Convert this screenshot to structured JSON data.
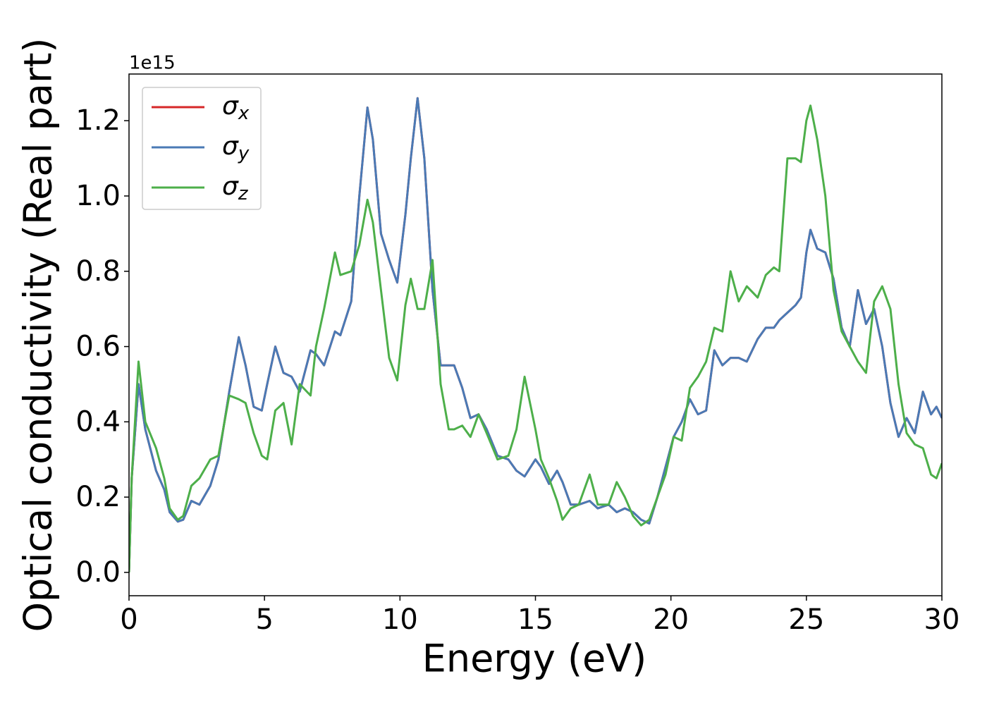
{
  "chart_data": {
    "type": "line",
    "x_label": "Energy (eV)",
    "y_label": "Optical conductivity (Real part)",
    "y_offset_label": "1e15",
    "xlim": [
      0,
      30
    ],
    "ylim": [
      -0.062,
      1.324
    ],
    "xticks": [
      0,
      5,
      10,
      15,
      20,
      25,
      30
    ],
    "yticks": [
      {
        "value": 0,
        "label": "0.0"
      },
      0.2,
      0.4,
      0.6,
      0.8,
      {
        "value": 1,
        "label": "1.0"
      },
      1.2
    ],
    "grid": false,
    "legend": "upper left",
    "x": [
      0,
      0.1,
      0.35,
      0.6,
      1.0,
      1.3,
      1.5,
      1.8,
      2.0,
      2.3,
      2.6,
      3.0,
      3.3,
      3.7,
      4.05,
      4.3,
      4.6,
      4.9,
      5.1,
      5.4,
      5.7,
      6.0,
      6.3,
      6.7,
      6.9,
      7.2,
      7.6,
      7.8,
      8.2,
      8.5,
      8.8,
      9.0,
      9.3,
      9.6,
      9.9,
      10.2,
      10.4,
      10.65,
      10.9,
      11.2,
      11.5,
      11.8,
      12.0,
      12.3,
      12.6,
      12.9,
      13.2,
      13.6,
      14.0,
      14.3,
      14.6,
      15.0,
      15.2,
      15.5,
      15.8,
      16.0,
      16.3,
      16.6,
      17.0,
      17.3,
      17.7,
      18.0,
      18.3,
      18.6,
      18.9,
      19.2,
      19.5,
      19.8,
      20.1,
      20.4,
      20.7,
      21.0,
      21.3,
      21.6,
      21.9,
      22.2,
      22.5,
      22.8,
      23.2,
      23.5,
      23.8,
      24.0,
      24.3,
      24.6,
      24.8,
      25.0,
      25.15,
      25.4,
      25.7,
      26.0,
      26.3,
      26.6,
      26.9,
      27.2,
      27.5,
      27.8,
      28.1,
      28.4,
      28.7,
      29.0,
      29.3,
      29.6,
      29.8,
      30.0
    ],
    "series": [
      {
        "name": "σx",
        "color": "#d62728",
        "values": [
          0,
          0.25,
          0.5,
          0.38,
          0.27,
          0.22,
          0.16,
          0.135,
          0.14,
          0.19,
          0.18,
          0.23,
          0.3,
          0.48,
          0.625,
          0.55,
          0.44,
          0.43,
          0.5,
          0.6,
          0.53,
          0.52,
          0.48,
          0.59,
          0.58,
          0.55,
          0.64,
          0.63,
          0.72,
          1.0,
          1.235,
          1.15,
          0.9,
          0.83,
          0.77,
          0.95,
          1.1,
          1.26,
          1.1,
          0.75,
          0.55,
          0.55,
          0.55,
          0.49,
          0.41,
          0.42,
          0.38,
          0.31,
          0.3,
          0.27,
          0.255,
          0.3,
          0.28,
          0.235,
          0.27,
          0.24,
          0.18,
          0.18,
          0.19,
          0.17,
          0.18,
          0.16,
          0.17,
          0.16,
          0.14,
          0.13,
          0.2,
          0.28,
          0.36,
          0.4,
          0.46,
          0.42,
          0.43,
          0.59,
          0.55,
          0.57,
          0.57,
          0.56,
          0.62,
          0.65,
          0.65,
          0.67,
          0.69,
          0.71,
          0.73,
          0.85,
          0.91,
          0.86,
          0.85,
          0.78,
          0.65,
          0.6,
          0.75,
          0.66,
          0.7,
          0.6,
          0.45,
          0.36,
          0.41,
          0.37,
          0.48,
          0.42,
          0.44,
          0.41
        ]
      },
      {
        "name": "σy",
        "color": "#4a7ab5",
        "values": [
          0,
          0.25,
          0.5,
          0.38,
          0.27,
          0.22,
          0.16,
          0.135,
          0.14,
          0.19,
          0.18,
          0.23,
          0.3,
          0.48,
          0.625,
          0.55,
          0.44,
          0.43,
          0.5,
          0.6,
          0.53,
          0.52,
          0.48,
          0.59,
          0.58,
          0.55,
          0.64,
          0.63,
          0.72,
          1.0,
          1.235,
          1.15,
          0.9,
          0.83,
          0.77,
          0.95,
          1.1,
          1.26,
          1.1,
          0.75,
          0.55,
          0.55,
          0.55,
          0.49,
          0.41,
          0.42,
          0.38,
          0.31,
          0.3,
          0.27,
          0.255,
          0.3,
          0.28,
          0.235,
          0.27,
          0.24,
          0.18,
          0.18,
          0.19,
          0.17,
          0.18,
          0.16,
          0.17,
          0.16,
          0.14,
          0.13,
          0.2,
          0.28,
          0.36,
          0.4,
          0.46,
          0.42,
          0.43,
          0.59,
          0.55,
          0.57,
          0.57,
          0.56,
          0.62,
          0.65,
          0.65,
          0.67,
          0.69,
          0.71,
          0.73,
          0.85,
          0.91,
          0.86,
          0.85,
          0.78,
          0.65,
          0.6,
          0.75,
          0.66,
          0.7,
          0.6,
          0.45,
          0.36,
          0.41,
          0.37,
          0.48,
          0.42,
          0.44,
          0.41
        ]
      },
      {
        "name": "σz",
        "color": "#4daf4a",
        "values": [
          0,
          0.25,
          0.56,
          0.4,
          0.33,
          0.25,
          0.17,
          0.14,
          0.15,
          0.23,
          0.25,
          0.3,
          0.31,
          0.47,
          0.46,
          0.45,
          0.37,
          0.31,
          0.3,
          0.43,
          0.45,
          0.34,
          0.5,
          0.47,
          0.6,
          0.7,
          0.85,
          0.79,
          0.8,
          0.87,
          0.99,
          0.93,
          0.75,
          0.57,
          0.51,
          0.71,
          0.78,
          0.7,
          0.7,
          0.83,
          0.5,
          0.38,
          0.38,
          0.39,
          0.36,
          0.42,
          0.37,
          0.3,
          0.31,
          0.38,
          0.52,
          0.38,
          0.3,
          0.25,
          0.19,
          0.14,
          0.17,
          0.18,
          0.26,
          0.18,
          0.18,
          0.24,
          0.2,
          0.15,
          0.125,
          0.14,
          0.2,
          0.26,
          0.36,
          0.35,
          0.49,
          0.52,
          0.56,
          0.65,
          0.64,
          0.8,
          0.72,
          0.76,
          0.73,
          0.79,
          0.81,
          0.8,
          1.1,
          1.1,
          1.09,
          1.2,
          1.24,
          1.15,
          1.0,
          0.75,
          0.64,
          0.6,
          0.56,
          0.53,
          0.72,
          0.76,
          0.7,
          0.5,
          0.37,
          0.34,
          0.33,
          0.26,
          0.25,
          0.29
        ]
      }
    ]
  }
}
